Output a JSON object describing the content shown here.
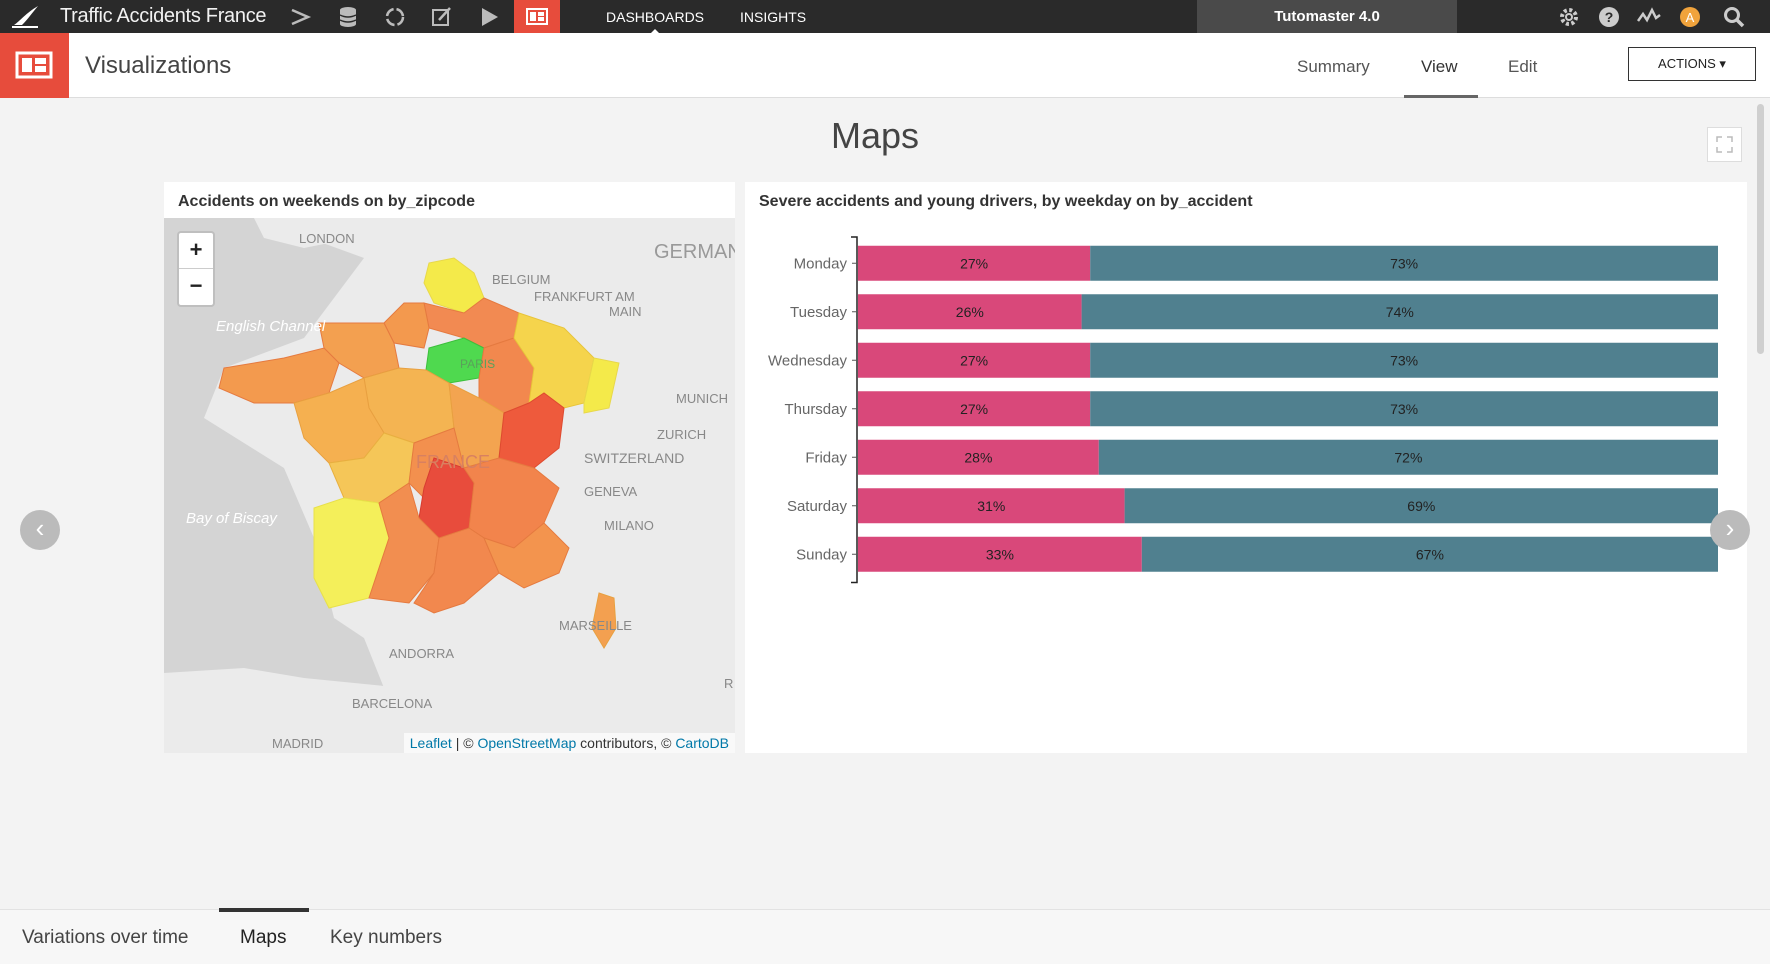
{
  "topbar": {
    "app_title": "Traffic Accidents France",
    "nav": [
      "DASHBOARDS",
      "INSIGHTS"
    ],
    "project": "Tutomaster 4.0",
    "avatar_letter": "A"
  },
  "subbar": {
    "section_title": "Visualizations",
    "tabs": [
      "Summary",
      "View",
      "Edit"
    ],
    "active_tab": "View",
    "actions_label": "ACTIONS ▾"
  },
  "page": {
    "title": "Maps"
  },
  "map": {
    "title": "Accidents on weekends on by_zipcode",
    "zoom_in": "+",
    "zoom_out": "−",
    "place_labels": [
      "LONDON",
      "GERMAN",
      "BELGIUM",
      "FRANKFURT AM",
      "MAIN",
      "English Channel",
      "PARIS",
      "MUNICH",
      "ZURICH",
      "SWITZERLAND",
      "FRANCE",
      "GENEVA",
      "Bay of Biscay",
      "MILANO",
      "MARSEILLE",
      "ANDORRA",
      "BARCELONA",
      "MADRID",
      "R"
    ],
    "attribution": {
      "leaflet": "Leaflet",
      "sep": " | © ",
      "osm": "OpenStreetMap",
      "contrib": " contributors, © ",
      "carto": "CartoDB"
    }
  },
  "chart_data": {
    "type": "bar",
    "title": "Severe accidents and young drivers, by weekday on by_accident",
    "stacked": true,
    "orientation": "horizontal",
    "categories": [
      "Monday",
      "Tuesday",
      "Wednesday",
      "Thursday",
      "Friday",
      "Saturday",
      "Sunday"
    ],
    "series": [
      {
        "values": [
          27,
          26,
          27,
          27,
          28,
          31,
          33
        ],
        "labels": [
          "27%",
          "26%",
          "27%",
          "27%",
          "28%",
          "31%",
          "33%"
        ],
        "color": "#d9487a"
      },
      {
        "values": [
          73,
          74,
          73,
          73,
          72,
          69,
          67
        ],
        "labels": [
          "73%",
          "74%",
          "73%",
          "73%",
          "72%",
          "69%",
          "67%"
        ],
        "color": "#50808f"
      }
    ],
    "xlim": [
      0,
      100
    ]
  },
  "bottom_tabs": [
    "Variations over time",
    "Maps",
    "Key numbers"
  ],
  "active_bottom_tab": "Maps",
  "colors": {
    "brand": "#e74c3c",
    "topbar": "#2a2a2a",
    "avatar": "#f0a33c"
  }
}
